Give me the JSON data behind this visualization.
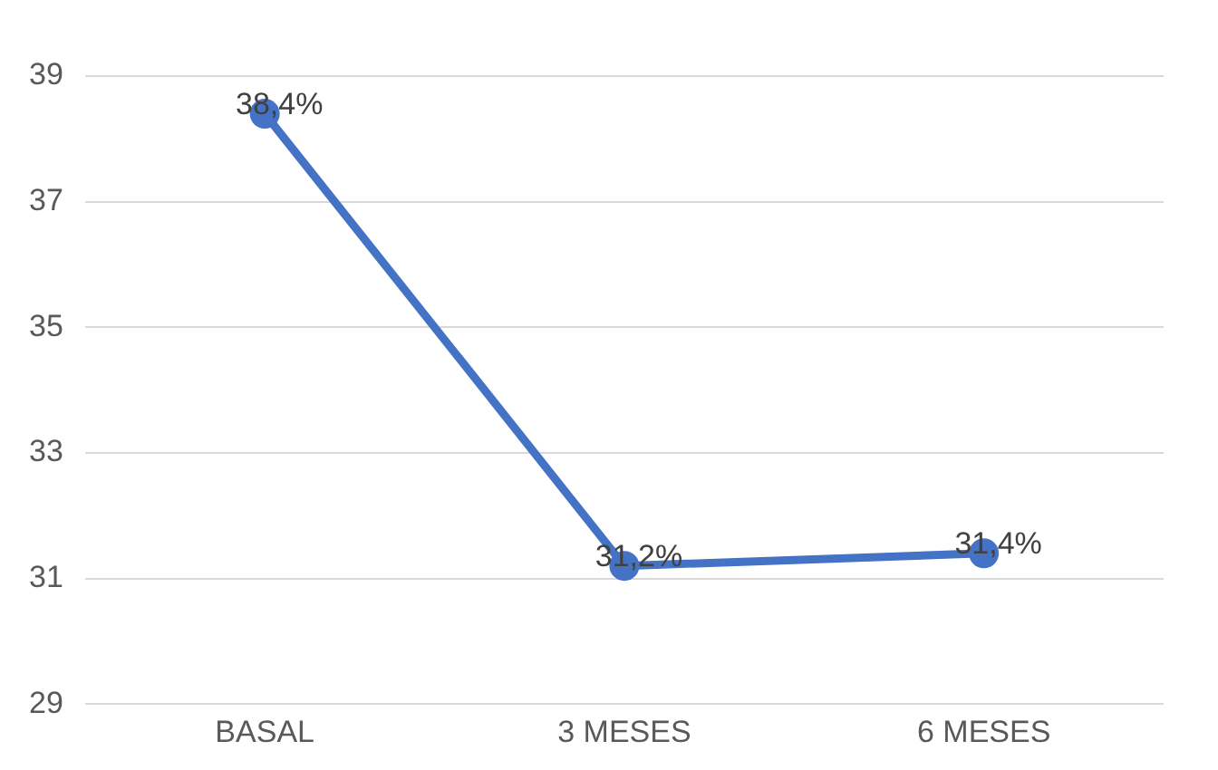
{
  "chart_data": {
    "type": "line",
    "categories": [
      "BASAL",
      "3 MESES",
      "6 MESES"
    ],
    "series": [
      {
        "color": "#4472c4",
        "values": [
          38.4,
          31.2,
          31.4
        ],
        "value_labels": [
          "38,4%",
          "31,2%",
          "31,4%"
        ]
      }
    ],
    "ylim": [
      29,
      39
    ],
    "yticks": [
      29,
      31,
      33,
      35,
      37,
      39
    ],
    "grid": "y",
    "marker": "circle",
    "line_style": "solid",
    "legend": false
  }
}
